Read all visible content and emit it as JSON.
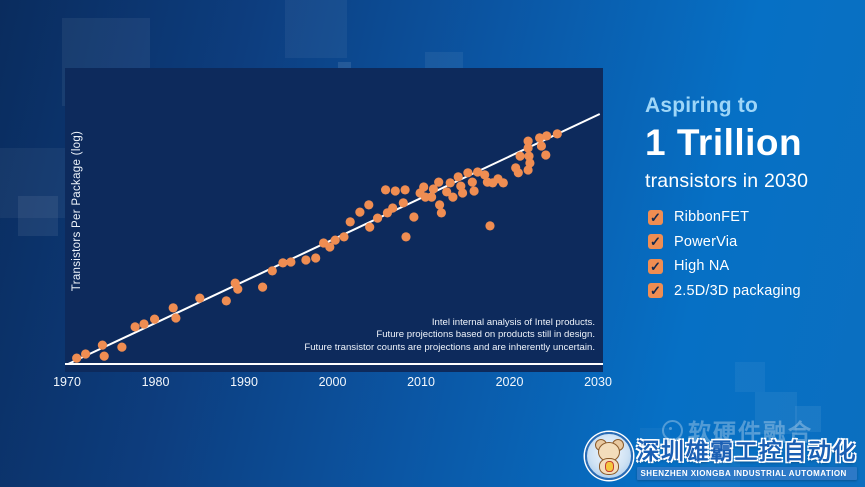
{
  "headline": {
    "eyebrow": "Aspiring to",
    "title": "1 Trillion",
    "subtitle": "transistors in 2030"
  },
  "checklist": [
    "RibbonFET",
    "PowerVia",
    "High NA",
    "2.5D/3D packaging"
  ],
  "chart_data": {
    "type": "scatter",
    "title": "",
    "xlabel": "",
    "ylabel": "Transistors Per Package (log)",
    "x_ticks": [
      1970,
      1980,
      1990,
      2000,
      2010,
      2020,
      2030
    ],
    "xlim": [
      1969.8,
      2030.6
    ],
    "ylim_log10": [
      3.0,
      13.6
    ],
    "y_scale": "log10 transistors per package",
    "grid": false,
    "legend": "none",
    "annotation": [
      "Intel internal analysis of Intel products.",
      "Future projections based on products still in design.",
      "Future transistor counts are projections and are inherently uncertain."
    ],
    "trendline": {
      "x1": 1970.1,
      "y1": 3.33,
      "x2": 2030.2,
      "y2": 12.0,
      "meaning": "projection to ~1e12 (1 trillion) transistors by 2030"
    },
    "points_format": "[year, log10(transistors)]",
    "points": [
      [
        1971.1,
        3.54
      ],
      [
        1972.1,
        3.68
      ],
      [
        1974.0,
        3.99
      ],
      [
        1974.2,
        3.61
      ],
      [
        1976.2,
        3.92
      ],
      [
        1977.7,
        4.62
      ],
      [
        1978.7,
        4.72
      ],
      [
        1979.9,
        4.89
      ],
      [
        1982.0,
        5.28
      ],
      [
        1982.3,
        4.93
      ],
      [
        1985.0,
        5.62
      ],
      [
        1988.0,
        5.52
      ],
      [
        1989.0,
        6.14
      ],
      [
        1989.3,
        5.93
      ],
      [
        1992.1,
        6.0
      ],
      [
        1993.2,
        6.56
      ],
      [
        1994.4,
        6.84
      ],
      [
        1995.3,
        6.87
      ],
      [
        1997.0,
        6.94
      ],
      [
        1998.1,
        7.01
      ],
      [
        1999.0,
        7.53
      ],
      [
        1999.7,
        7.39
      ],
      [
        2000.3,
        7.63
      ],
      [
        2001.3,
        7.74
      ],
      [
        2002.0,
        8.26
      ],
      [
        2003.1,
        8.6
      ],
      [
        2004.1,
        8.85
      ],
      [
        2004.2,
        8.08
      ],
      [
        2005.1,
        8.39
      ],
      [
        2006.2,
        8.57
      ],
      [
        2006.0,
        9.37
      ],
      [
        2006.8,
        8.74
      ],
      [
        2007.1,
        9.33
      ],
      [
        2008.0,
        8.92
      ],
      [
        2008.2,
        9.37
      ],
      [
        2009.2,
        8.43
      ],
      [
        2008.3,
        7.74
      ],
      [
        2009.9,
        9.26
      ],
      [
        2010.3,
        9.47
      ],
      [
        2010.5,
        9.12
      ],
      [
        2011.2,
        9.12
      ],
      [
        2011.4,
        9.4
      ],
      [
        2012.0,
        9.64
      ],
      [
        2012.1,
        8.85
      ],
      [
        2012.3,
        8.57
      ],
      [
        2012.9,
        9.3
      ],
      [
        2013.3,
        9.61
      ],
      [
        2013.6,
        9.12
      ],
      [
        2014.2,
        9.82
      ],
      [
        2014.5,
        9.5
      ],
      [
        2014.7,
        9.26
      ],
      [
        2015.3,
        9.96
      ],
      [
        2015.8,
        9.64
      ],
      [
        2016.0,
        9.33
      ],
      [
        2016.4,
        9.99
      ],
      [
        2017.2,
        9.89
      ],
      [
        2017.5,
        9.64
      ],
      [
        2018.1,
        9.61
      ],
      [
        2018.7,
        9.75
      ],
      [
        2019.3,
        9.61
      ],
      [
        2017.8,
        8.12
      ],
      [
        2020.7,
        10.13
      ],
      [
        2021.0,
        9.96
      ],
      [
        2021.2,
        10.54
      ],
      [
        2022.1,
        11.06
      ],
      [
        2022.1,
        10.82
      ],
      [
        2022.2,
        10.54
      ],
      [
        2022.3,
        10.3
      ],
      [
        2022.1,
        10.06
      ],
      [
        2023.4,
        11.17
      ],
      [
        2023.6,
        10.89
      ],
      [
        2024.1,
        10.58
      ],
      [
        2024.2,
        11.24
      ],
      [
        2025.4,
        11.31
      ]
    ]
  },
  "watermark": {
    "ghost_text": "软硬件融合",
    "company_zh": "深圳雄霸工控自动化",
    "company_en": "SHENZHEN XIONGBA INDUSTRIAL AUTOMATION"
  },
  "colors": {
    "accent_orange": "#ef8d52",
    "panel_navy": "#0d2a5c",
    "headline_lightblue": "#9ed6f8",
    "trend_line": "#ffffff",
    "check_mark": "#13294e",
    "bg_left": "#0a2c5e",
    "bg_right": "#0b6fc0"
  }
}
